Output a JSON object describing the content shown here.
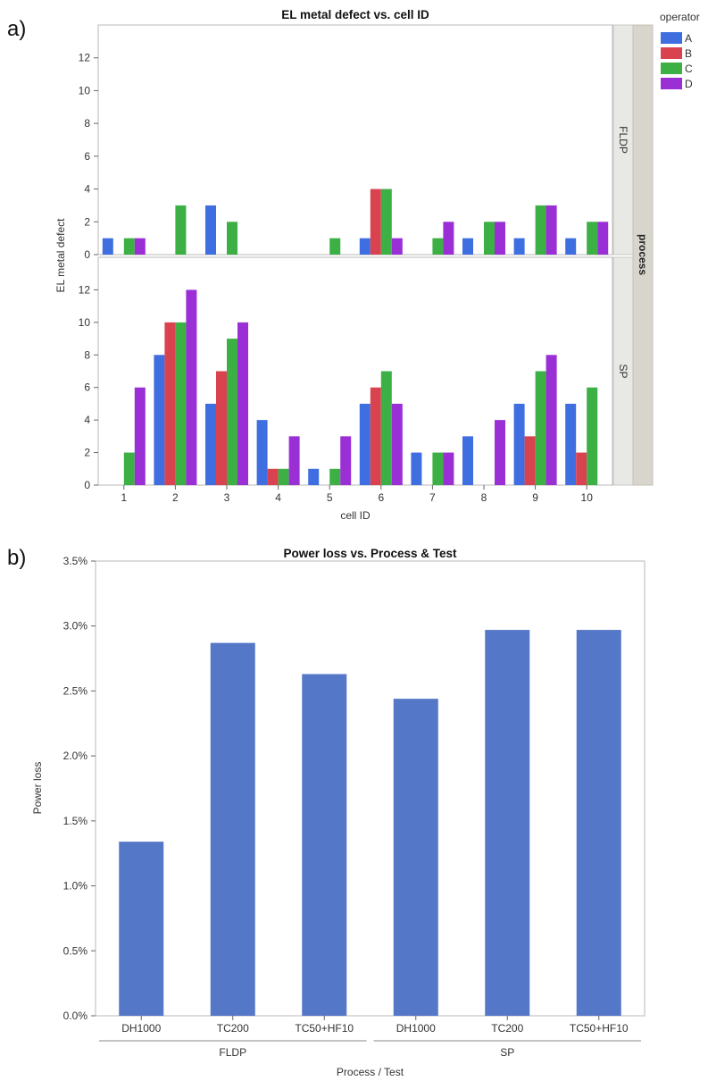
{
  "panel_labels": [
    "a)",
    "b)"
  ],
  "chart_data": [
    {
      "type": "bar",
      "title": "EL metal defect vs. cell ID",
      "xlabel": "cell ID",
      "ylabel": "EL metal defect",
      "categories": [
        "1",
        "2",
        "3",
        "4",
        "5",
        "6",
        "7",
        "8",
        "9",
        "10"
      ],
      "ylim": [
        0,
        14
      ],
      "yticks": [
        "0",
        "2",
        "4",
        "6",
        "8",
        "10",
        "12"
      ],
      "facet_title": "process",
      "legend_title": "operator",
      "legend_position": "top-right",
      "grid": false,
      "series_meta": [
        {
          "name": "A",
          "color": "#3f6ee0"
        },
        {
          "name": "B",
          "color": "#d9434f"
        },
        {
          "name": "C",
          "color": "#3cb044"
        },
        {
          "name": "D",
          "color": "#9a2fd6"
        }
      ],
      "facets": [
        {
          "name": "FLDP",
          "series": [
            {
              "name": "A",
              "values": [
                1,
                0,
                3,
                0,
                0,
                1,
                0,
                1,
                1,
                1
              ]
            },
            {
              "name": "B",
              "values": [
                0,
                0,
                0,
                0,
                0,
                4,
                0,
                0,
                0,
                0
              ]
            },
            {
              "name": "C",
              "values": [
                1,
                3,
                2,
                0,
                1,
                4,
                1,
                2,
                3,
                2
              ]
            },
            {
              "name": "D",
              "values": [
                1,
                0,
                0,
                0,
                0,
                1,
                2,
                2,
                3,
                2
              ]
            }
          ]
        },
        {
          "name": "SP",
          "series": [
            {
              "name": "A",
              "values": [
                0,
                8,
                5,
                4,
                1,
                5,
                2,
                3,
                5,
                5
              ]
            },
            {
              "name": "B",
              "values": [
                0,
                10,
                7,
                1,
                0,
                6,
                0,
                0,
                3,
                2
              ]
            },
            {
              "name": "C",
              "values": [
                2,
                10,
                9,
                1,
                1,
                7,
                2,
                0,
                7,
                6
              ]
            },
            {
              "name": "D",
              "values": [
                6,
                12,
                10,
                3,
                3,
                5,
                2,
                4,
                8,
                0
              ]
            }
          ]
        }
      ]
    },
    {
      "type": "bar",
      "title": "Power loss vs. Process & Test",
      "xlabel": "Process / Test",
      "ylabel": "Power loss",
      "ylim": [
        0,
        3.5
      ],
      "yticks": [
        "0.0%",
        "0.5%",
        "1.0%",
        "1.5%",
        "2.0%",
        "2.5%",
        "3.0%",
        "3.5%"
      ],
      "bar_color": "#5577c8",
      "grid": false,
      "groups": [
        {
          "name": "FLDP",
          "categories": [
            "DH1000",
            "TC200",
            "TC50+HF10"
          ],
          "values": [
            1.34,
            2.87,
            2.63
          ]
        },
        {
          "name": "SP",
          "categories": [
            "DH1000",
            "TC200",
            "TC50+HF10"
          ],
          "values": [
            2.44,
            2.97,
            2.97
          ]
        }
      ]
    }
  ]
}
